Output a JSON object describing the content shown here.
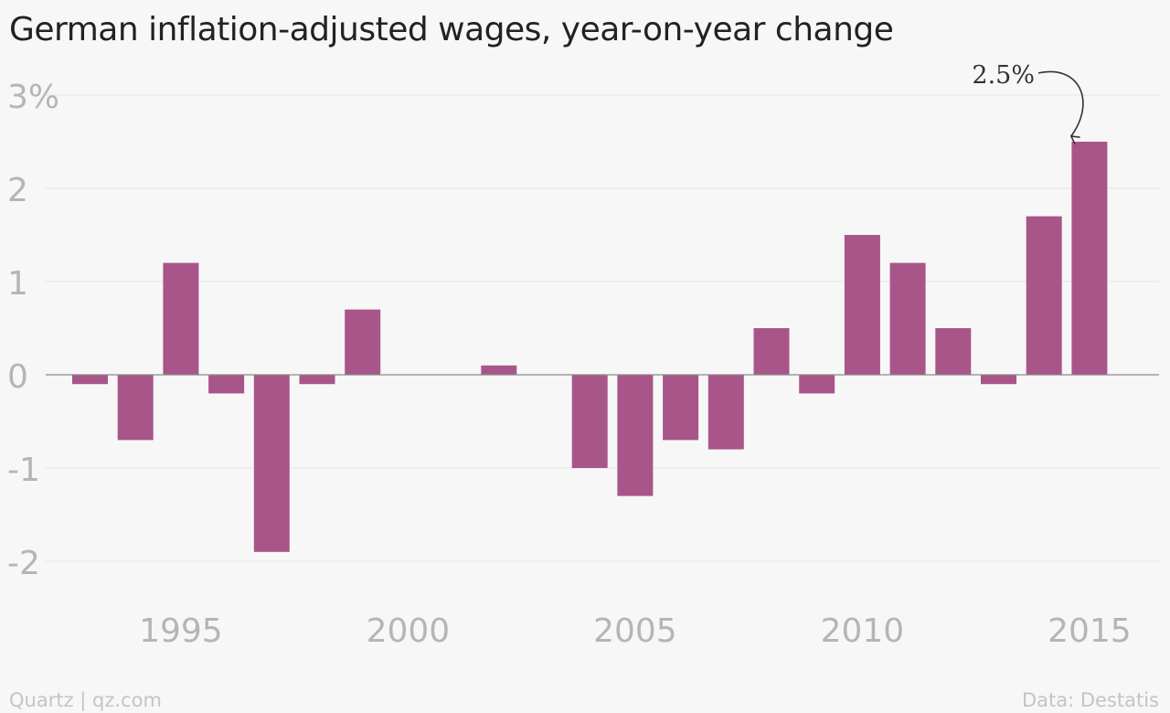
{
  "chart_data": {
    "type": "bar",
    "title": "German inflation-adjusted wages, year-on-year change",
    "xlabel": "",
    "ylabel": "",
    "categories": [
      1993,
      1994,
      1995,
      1996,
      1997,
      1998,
      1999,
      2000,
      2001,
      2002,
      2003,
      2004,
      2005,
      2006,
      2007,
      2008,
      2009,
      2010,
      2011,
      2012,
      2013,
      2014,
      2015
    ],
    "values": [
      -0.1,
      -0.7,
      1.2,
      -0.2,
      -1.9,
      -0.1,
      0.7,
      0.0,
      0.0,
      0.1,
      0.0,
      -1.0,
      -1.3,
      -0.7,
      -0.8,
      0.5,
      -0.2,
      1.5,
      1.2,
      0.5,
      -0.1,
      1.7,
      2.5
    ],
    "ylim": [
      -2,
      3
    ],
    "y_ticks": [
      3,
      2,
      1,
      0,
      -1,
      -2
    ],
    "y_tick_labels": [
      "3%",
      "2",
      "1",
      "0",
      "-1",
      "-2"
    ],
    "x_ticks": [
      1995,
      2000,
      2005,
      2010,
      2015
    ],
    "x_tick_labels": [
      "1995",
      "2000",
      "2005",
      "2010",
      "2015"
    ],
    "grid": true,
    "bar_color": "#a8568a",
    "annotation": {
      "x": 2015,
      "text": "2.5%"
    }
  },
  "footer": {
    "source_left": "Quartz | qz.com",
    "source_right": "Data: Destatis"
  }
}
